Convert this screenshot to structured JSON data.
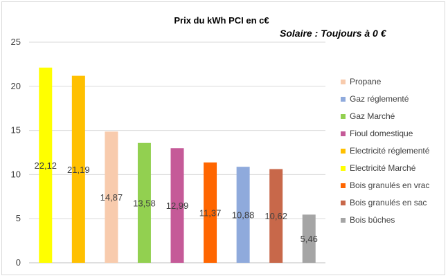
{
  "chart_data": {
    "type": "bar",
    "title": "Prix du kWh PCI en c€",
    "annotation": "Solaire : Toujours à 0 €",
    "categories": [
      "Electricité Marché",
      "Electricité réglementé",
      "Propane",
      "Gaz Marché",
      "Fioul domestique",
      "Bois granulés en vrac",
      "Gaz réglementé",
      "Bois granulés en sac",
      "Bois bûches"
    ],
    "values": [
      22.12,
      21.19,
      14.87,
      13.58,
      12.99,
      11.37,
      10.88,
      10.62,
      5.46
    ],
    "value_labels": [
      "22,12",
      "21,19",
      "14,87",
      "13,58",
      "12,99",
      "11,37",
      "10,88",
      "10,62",
      "5,46"
    ],
    "colors": [
      "#ffff00",
      "#ffc000",
      "#f8cbad",
      "#92d050",
      "#c55a98",
      "#ff6600",
      "#8faadc",
      "#c8684a",
      "#a5a5a5"
    ],
    "ylim": [
      0,
      25
    ],
    "yticks": [
      "0",
      "5",
      "10",
      "15",
      "20",
      "25"
    ],
    "grid": true,
    "legend_position": "right",
    "legend": [
      {
        "label": "Propane",
        "color": "#f8cbad"
      },
      {
        "label": "Gaz réglementé",
        "color": "#8faadc"
      },
      {
        "label": "Gaz Marché",
        "color": "#92d050"
      },
      {
        "label": "Fioul domestique",
        "color": "#c55a98"
      },
      {
        "label": "Electricité réglementé",
        "color": "#ffc000"
      },
      {
        "label": "Electricité Marché",
        "color": "#ffff00"
      },
      {
        "label": "Bois granulés en vrac",
        "color": "#ff6600"
      },
      {
        "label": "Bois granulés en sac",
        "color": "#c8684a"
      },
      {
        "label": "Bois bûches",
        "color": "#a5a5a5"
      }
    ]
  }
}
